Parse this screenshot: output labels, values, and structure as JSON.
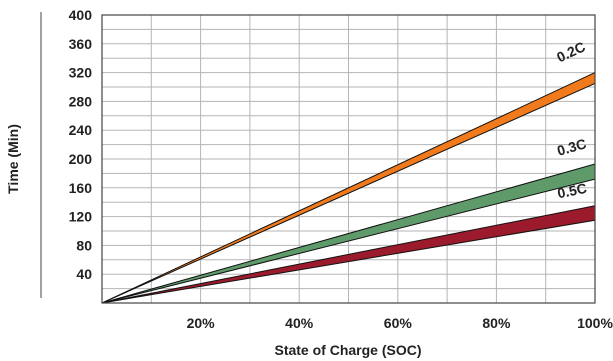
{
  "chart_data": {
    "type": "area",
    "xlabel": "State of Charge (SOC)",
    "ylabel": "Time (Min)",
    "xlim": [
      0,
      100
    ],
    "ylim": [
      0,
      400
    ],
    "x_ticks": [
      20,
      40,
      60,
      80,
      100
    ],
    "x_tick_labels": [
      "20%",
      "40%",
      "60%",
      "80%",
      "100%"
    ],
    "y_ticks": [
      40,
      80,
      120,
      160,
      200,
      240,
      280,
      320,
      360,
      400
    ],
    "y_tick_labels": [
      "40",
      "80",
      "120",
      "160",
      "200",
      "240",
      "280",
      "320",
      "360",
      "400"
    ],
    "grid": true,
    "legend": "none",
    "series": [
      {
        "name": "0.2C",
        "color": "#f07a1c",
        "x": [
          0,
          100
        ],
        "lower": [
          0,
          305
        ],
        "upper": [
          0,
          320
        ]
      },
      {
        "name": "0.3C",
        "color": "#5e9a6a",
        "x": [
          0,
          100
        ],
        "lower": [
          0,
          172
        ],
        "upper": [
          0,
          193
        ]
      },
      {
        "name": "0.5C",
        "color": "#9b1b2c",
        "x": [
          0,
          100
        ],
        "lower": [
          0,
          115
        ],
        "upper": [
          0,
          135
        ]
      }
    ]
  }
}
